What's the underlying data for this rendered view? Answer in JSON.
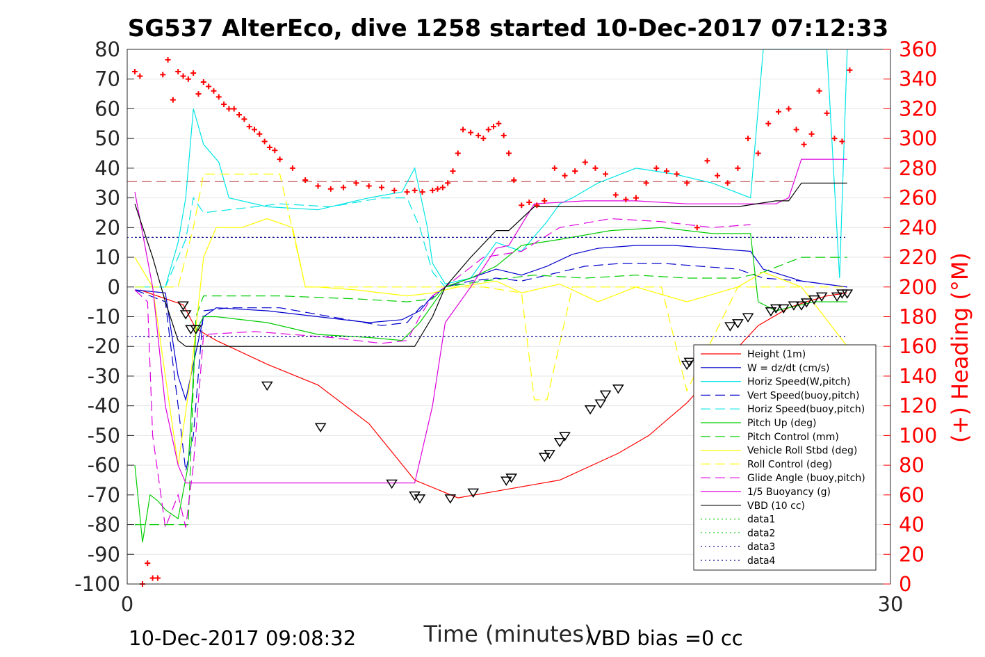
{
  "chart_data": {
    "type": "line",
    "title": "SG537 AlterEco, dive 1258 started 10-Dec-2017 07:12:33",
    "xlabel": "Time (minutes)",
    "ylabel": "",
    "ylabel_right": "(+) Heading (°M)",
    "xlim": [
      0,
      30
    ],
    "ylim": [
      -100,
      80
    ],
    "ylim_right": [
      0,
      360
    ],
    "xticks": [
      "0",
      "30"
    ],
    "yticks": [
      "80",
      "70",
      "60",
      "50",
      "40",
      "30",
      "20",
      "10",
      "0",
      "-10",
      "-20",
      "-30",
      "-40",
      "-50",
      "-60",
      "-70",
      "-80",
      "-90",
      "-100"
    ],
    "yticks_right": [
      "360",
      "340",
      "320",
      "300",
      "280",
      "260",
      "240",
      "220",
      "200",
      "180",
      "160",
      "140",
      "120",
      "100",
      "80",
      "60",
      "40",
      "20",
      "0"
    ],
    "footer_left": "10-Dec-2017 09:08:32",
    "footer_right": "VBD bias =0 cc",
    "grid": true,
    "legend_position": "bottom-right",
    "reference_lines": [
      {
        "y": 35.5,
        "color": "#b22222",
        "style": "dashed"
      },
      {
        "y": 16.7,
        "color": "#00008b",
        "style": "dotted"
      },
      {
        "y": -16.7,
        "color": "#00008b",
        "style": "dotted"
      }
    ],
    "series": [
      {
        "name": "Height (1m)",
        "color": "#ff0000",
        "style": "solid",
        "x": [
          0.5,
          2.2,
          2.7,
          3.5,
          5.5,
          7.5,
          9.5,
          11.3,
          13.0,
          15.0,
          17.0,
          19.3,
          20.5,
          22.0,
          23.5,
          24.8,
          26.0,
          26.7,
          27.5,
          28.3
        ],
        "y": [
          -1,
          -6,
          -14,
          -18,
          -26,
          -33,
          -46,
          -65,
          -71,
          -68,
          -65,
          -56,
          -50,
          -39,
          -25,
          -13,
          -7,
          -5,
          -3,
          -2
        ]
      },
      {
        "name": "W = dz/dt (cm/s)",
        "color": "#0000cc",
        "style": "solid",
        "x": [
          0.3,
          1.5,
          2.0,
          2.3,
          2.5,
          3.0,
          3.5,
          5.5,
          7.5,
          9.5,
          10.8,
          11.5,
          12.0,
          12.5,
          13.5,
          14.5,
          15.5,
          16.5,
          17.5,
          18.5,
          20.0,
          21.5,
          23.0,
          24.5,
          25.0,
          26.5,
          28.3
        ],
        "y": [
          -1,
          -2,
          -30,
          -38,
          -30,
          -10,
          -7,
          -8,
          -10,
          -12,
          -11,
          -8,
          -3,
          0,
          3,
          6,
          4,
          7,
          11,
          13,
          14,
          14,
          13,
          12,
          6,
          2,
          0
        ]
      },
      {
        "name": "Horiz Speed(W,pitch)",
        "color": "#00e5e5",
        "style": "solid",
        "x": [
          0.3,
          1.5,
          2.0,
          2.3,
          2.6,
          3.0,
          3.6,
          4.0,
          5.5,
          7.5,
          9.5,
          10.8,
          11.3,
          11.8,
          12.0,
          12.5,
          13.5,
          14.5,
          15.5,
          16.5,
          17.0,
          17.5,
          18.5,
          20.0,
          21.5,
          23.0,
          24.5,
          25.0,
          26.5,
          27.5,
          28.0,
          28.3
        ],
        "y": [
          0,
          0,
          15,
          30,
          60,
          48,
          42,
          30,
          27,
          26,
          30,
          32,
          40,
          20,
          8,
          1,
          3,
          15,
          12,
          22,
          28,
          30,
          35,
          40,
          38,
          35,
          30,
          80,
          80,
          80,
          3,
          80
        ]
      },
      {
        "name": "Vert Speed(buoy,pitch)",
        "color": "#0000cc",
        "style": "dashed",
        "x": [
          0.3,
          1.5,
          2.0,
          2.3,
          2.6,
          3.0,
          4.0,
          6.0,
          8.0,
          10.0,
          11.0,
          11.5,
          12.5,
          13.5,
          14.5,
          15.5,
          16.5,
          18.0,
          19.5,
          21.0,
          22.5,
          24.0,
          25.0,
          26.5,
          28.3
        ],
        "y": [
          -1,
          -5,
          -40,
          -62,
          -50,
          -8,
          -7,
          -7,
          -10,
          -13,
          -12,
          -7,
          0,
          2,
          3,
          2,
          4,
          7,
          8,
          8,
          7,
          6,
          3,
          2,
          0
        ]
      },
      {
        "name": "Horiz Speed(buoy,pitch)",
        "color": "#00e5e5",
        "style": "dashed",
        "x": [
          0.3,
          1.5,
          2.0,
          2.3,
          2.6,
          3.0,
          4.0,
          6.0,
          8.0,
          10.0,
          11.0,
          11.5,
          12.0,
          12.5
        ],
        "y": [
          0,
          0,
          10,
          16,
          30,
          25,
          26,
          28,
          27,
          30,
          30,
          20,
          5,
          0
        ]
      },
      {
        "name": "Pitch Up (deg)",
        "color": "#00cc00",
        "style": "solid",
        "x": [
          0.3,
          0.6,
          0.9,
          1.2,
          1.5,
          2.0,
          2.4,
          2.7,
          3.0,
          3.5,
          5.5,
          7.5,
          9.5,
          10.8,
          11.5,
          12.0,
          12.5,
          13.5,
          14.5,
          15.5,
          17.0,
          19.0,
          21.0,
          23.0,
          24.5,
          24.8,
          25.5,
          27.0,
          28.3
        ],
        "y": [
          -60,
          -86,
          -70,
          -72,
          -75,
          -78,
          -60,
          -15,
          -10,
          -10,
          -12,
          -16,
          -17,
          -18,
          -12,
          -6,
          0,
          3,
          7,
          14,
          16,
          19,
          20,
          18,
          18,
          -5,
          -8,
          -5,
          -5
        ]
      },
      {
        "name": "Pitch Control (mm)",
        "color": "#00cc00",
        "style": "dashed",
        "x": [
          0.3,
          0.8,
          1.5,
          2.0,
          2.4,
          2.7,
          3.0,
          6.0,
          9.0,
          11.0,
          12.0,
          12.5,
          14.0,
          16.0,
          18.0,
          20.0,
          22.0,
          24.0,
          25.0,
          26.5,
          28.3
        ],
        "y": [
          -80,
          -80,
          -80,
          -80,
          -80,
          -10,
          -3,
          -3,
          -4,
          -5,
          -4,
          0,
          2,
          4,
          3,
          4,
          3,
          3,
          5,
          10,
          10
        ]
      },
      {
        "name": "Vehicle Roll Stbd (deg)",
        "color": "#ffff00",
        "style": "solid",
        "x": [
          0.3,
          1.0,
          1.5,
          2.0,
          2.5,
          3.0,
          3.5,
          4.5,
          5.5,
          6.5,
          7.0,
          7.5,
          9.0,
          11.0,
          12.0,
          13.0,
          14.5,
          15.5,
          17.0,
          18.5,
          20.0,
          22.0,
          24.0,
          25.0,
          26.5,
          28.3
        ],
        "y": [
          10,
          0,
          -30,
          -60,
          -30,
          10,
          20,
          20,
          23,
          20,
          0,
          0,
          -1,
          -3,
          -2,
          0,
          2,
          -2,
          1,
          -5,
          0,
          -5,
          0,
          5,
          0,
          -20
        ]
      },
      {
        "name": "Roll Control (deg)",
        "color": "#ffff00",
        "style": "dashed",
        "x": [
          0.3,
          2.0,
          2.6,
          3.0,
          4.0,
          6.0,
          7.0,
          8.0,
          10.0,
          12.0,
          13.0,
          14.0,
          15.5,
          16.0,
          16.5,
          17.5,
          19.0,
          21.0,
          22.0,
          24.0,
          26.0,
          28.3
        ],
        "y": [
          0,
          0,
          20,
          38,
          38,
          38,
          0,
          0,
          0,
          0,
          0,
          0,
          -2,
          -38,
          -38,
          0,
          0,
          0,
          -35,
          0,
          0,
          0
        ]
      },
      {
        "name": "Glide Angle (buoy,pitch)",
        "color": "#dd00dd",
        "style": "dashed",
        "x": [
          0.3,
          0.8,
          1.0,
          1.5,
          2.0,
          2.3,
          2.6,
          3.0,
          5.0,
          8.0,
          10.0,
          11.0,
          11.5,
          12.0,
          12.5,
          14.0,
          15.5,
          17.0,
          19.0,
          21.0,
          23.0,
          24.5
        ],
        "y": [
          -1,
          -5,
          -50,
          -81,
          -70,
          -81,
          -60,
          -16,
          -15,
          -17,
          -19,
          -18,
          -10,
          -3,
          0,
          10,
          12,
          20,
          23,
          22,
          20,
          21
        ]
      },
      {
        "name": "1/5 Buoyancy (g)",
        "color": "#dd00dd",
        "style": "solid",
        "x": [
          0.3,
          1.0,
          1.5,
          2.0,
          2.3,
          2.6,
          5.0,
          8.0,
          10.0,
          11.3,
          12.0,
          12.5,
          13.5,
          14.5,
          15.0,
          16.0,
          18.0,
          20.0,
          22.0,
          24.0,
          25.5,
          26.0,
          26.5,
          28.3
        ],
        "y": [
          32,
          0,
          -40,
          -60,
          -66,
          -66,
          -66,
          -66,
          -66,
          -66,
          -40,
          -12,
          0,
          13,
          14,
          28,
          29,
          29,
          28,
          28,
          28,
          30,
          43,
          43
        ]
      },
      {
        "name": "VBD (10 cc)",
        "color": "#000000",
        "style": "solid",
        "x": [
          0.3,
          1.0,
          1.5,
          2.0,
          2.3,
          2.6,
          5.0,
          8.0,
          10.0,
          11.3,
          12.0,
          12.5,
          13.5,
          14.5,
          15.0,
          16.0,
          18.0,
          20.0,
          22.0,
          24.0,
          25.5,
          26.0,
          26.5,
          28.3
        ],
        "y": [
          28,
          10,
          -5,
          -18,
          -20,
          -20,
          -20,
          -20,
          -20,
          -20,
          -10,
          0,
          10,
          19,
          19,
          27,
          27,
          27,
          27,
          27,
          29,
          29,
          35,
          35
        ]
      },
      {
        "name": "data1",
        "color": "#00cc00",
        "style": "dotted",
        "x": [],
        "y": []
      },
      {
        "name": "data2",
        "color": "#00cc00",
        "style": "dotted",
        "x": [],
        "y": []
      },
      {
        "name": "data3",
        "color": "#00008b",
        "style": "dotted",
        "x": [
          0.3,
          28.3
        ],
        "y": [
          16.7,
          16.7
        ]
      },
      {
        "name": "data4",
        "color": "#00008b",
        "style": "dotted",
        "x": [
          0.3,
          28.3
        ],
        "y": [
          -16.7,
          -16.7
        ]
      }
    ],
    "markers": {
      "x": [
        2.2,
        2.3,
        2.5,
        2.7,
        5.5,
        7.6,
        10.4,
        11.3,
        11.5,
        12.7,
        13.6,
        14.9,
        15.1,
        16.4,
        16.6,
        17.0,
        17.2,
        18.2,
        18.6,
        18.8,
        19.3,
        22.0,
        22.1,
        22.6,
        23.7,
        24.0,
        24.4,
        25.3,
        25.5,
        25.8,
        26.2,
        26.5,
        26.7,
        27.0,
        27.3,
        27.9,
        28.1,
        28.3
      ],
      "y": [
        -6,
        -9,
        -14,
        -14,
        -33,
        -47,
        -66,
        -70,
        -71,
        -71,
        -69,
        -65,
        -64,
        -57,
        -56,
        -52,
        -50,
        -41,
        -39,
        -36,
        -34,
        -26,
        -25,
        -23,
        -13,
        -12,
        -10,
        -8,
        -7,
        -7,
        -6,
        -6,
        -5,
        -4,
        -3,
        -3,
        -2,
        -2
      ],
      "color": "#000000"
    },
    "heading_series": {
      "axis": "right",
      "color": "#ff0000",
      "x": [
        0.3,
        0.5,
        0.6,
        0.8,
        1.0,
        1.2,
        1.4,
        1.6,
        1.8,
        2.0,
        2.2,
        2.4,
        2.6,
        2.8,
        3.0,
        3.2,
        3.4,
        3.6,
        3.8,
        4.0,
        4.2,
        4.4,
        4.6,
        4.8,
        5.0,
        5.2,
        5.4,
        5.6,
        5.8,
        6.0,
        6.5,
        7.0,
        7.5,
        8.0,
        8.5,
        9.0,
        9.5,
        10.0,
        10.5,
        11.0,
        11.3,
        11.6,
        12.0,
        12.2,
        12.4,
        12.6,
        12.8,
        13.0,
        13.2,
        13.5,
        13.8,
        14.0,
        14.2,
        14.4,
        14.6,
        14.8,
        15.0,
        15.2,
        15.5,
        15.8,
        16.1,
        16.4,
        16.8,
        17.2,
        17.6,
        18.0,
        18.4,
        18.8,
        19.2,
        19.6,
        20.0,
        20.4,
        20.8,
        21.2,
        21.6,
        22.0,
        22.4,
        22.8,
        23.2,
        23.6,
        24.0,
        24.4,
        24.8,
        25.2,
        25.6,
        26.0,
        26.3,
        26.6,
        26.9,
        27.2,
        27.5,
        27.8,
        28.1,
        28.4
      ],
      "y": [
        345,
        342,
        0,
        14,
        4,
        4,
        343,
        353,
        326,
        345,
        342,
        340,
        344,
        330,
        338,
        335,
        332,
        328,
        323,
        320,
        320,
        316,
        313,
        308,
        306,
        303,
        298,
        294,
        292,
        286,
        280,
        272,
        268,
        266,
        267,
        270,
        268,
        267,
        265,
        264,
        265,
        264,
        265,
        266,
        267,
        270,
        278,
        290,
        306,
        304,
        302,
        300,
        306,
        308,
        310,
        302,
        290,
        272,
        255,
        257,
        255,
        258,
        280,
        275,
        278,
        284,
        280,
        276,
        262,
        259,
        260,
        270,
        280,
        278,
        276,
        270,
        240,
        285,
        275,
        270,
        280,
        300,
        290,
        310,
        318,
        320,
        306,
        296,
        303,
        332,
        317,
        300,
        298,
        346
      ]
    }
  }
}
